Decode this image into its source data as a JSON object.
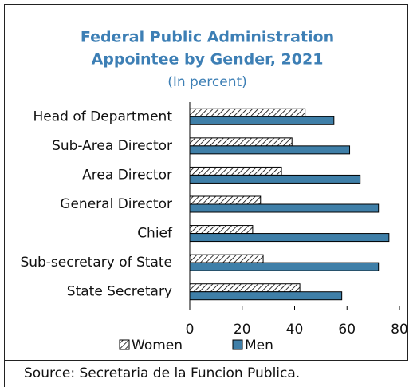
{
  "chart_data": {
    "type": "hbar",
    "title": [
      "Federal Public Administration",
      "Appointee  by Gender, 2021"
    ],
    "subtitle": "(In percent)",
    "categories": [
      "Head of Department",
      "Sub-Area Director",
      "Area Director",
      "General Director",
      "Chief",
      "Sub-secretary of State",
      "State Secretary"
    ],
    "series": [
      {
        "name": "Women",
        "color": "hatch",
        "values": [
          44,
          39,
          35,
          27,
          24,
          28,
          42
        ]
      },
      {
        "name": "Men",
        "color": "#3f7fa8",
        "values": [
          55,
          61,
          65,
          72,
          76,
          72,
          58
        ]
      }
    ],
    "xlim": [
      0,
      80
    ],
    "xticks": [
      0,
      20,
      40,
      60,
      80
    ],
    "source": "Source:  Secretaria de la Funcion Publica."
  }
}
